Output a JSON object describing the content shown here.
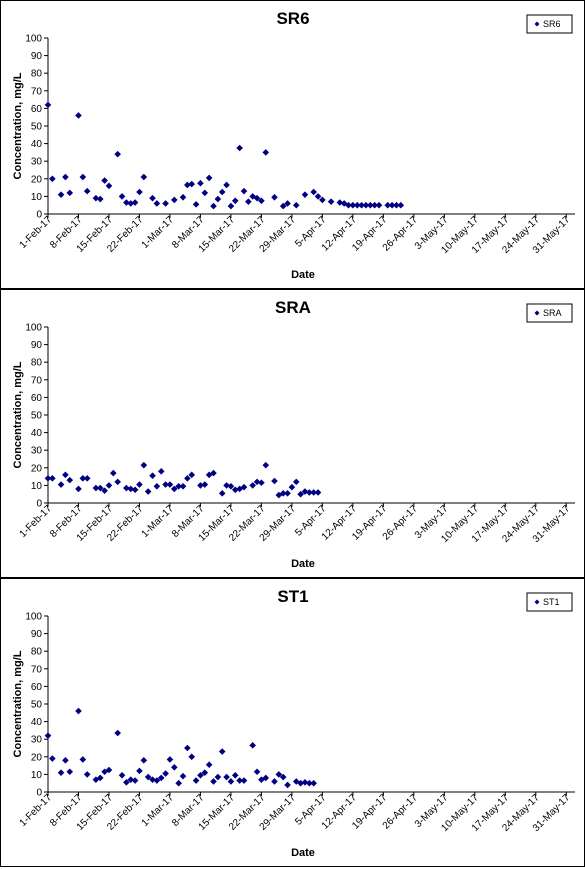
{
  "chart_data": [
    {
      "type": "scatter",
      "title": "SR6",
      "xlabel": "Date",
      "ylabel": "Concentration, mg/L",
      "ylim": [
        0,
        100
      ],
      "yticks": [
        0,
        10,
        20,
        30,
        40,
        50,
        60,
        70,
        80,
        90,
        100
      ],
      "xticks": [
        "1-Feb-17",
        "8-Feb-17",
        "15-Feb-17",
        "22-Feb-17",
        "1-Mar-17",
        "8-Mar-17",
        "15-Mar-17",
        "22-Mar-17",
        "29-Mar-17",
        "5-Apr-17",
        "12-Apr-17",
        "19-Apr-17",
        "26-Apr-17",
        "3-May-17",
        "10-May-17",
        "17-May-17",
        "24-May-17",
        "31-May-17"
      ],
      "xrange_days": [
        0,
        120
      ],
      "legend": "top-right",
      "series": [
        {
          "name": "SR6",
          "color": "#000080",
          "x": [
            0,
            1,
            3,
            4,
            5,
            7,
            8,
            9,
            11,
            12,
            13,
            14,
            16,
            17,
            18,
            19,
            20,
            21,
            22,
            24,
            25,
            27,
            29,
            31,
            32,
            33,
            34,
            35,
            36,
            37,
            38,
            39,
            40,
            41,
            42,
            43,
            44,
            45,
            46,
            47,
            48,
            49,
            50,
            52,
            54,
            55,
            57,
            59,
            61,
            62,
            63,
            65,
            67,
            68,
            69,
            70,
            71,
            72,
            73,
            74,
            75,
            76,
            78,
            79,
            80,
            81
          ],
          "y": [
            62,
            20,
            11,
            21,
            12,
            56,
            21,
            13,
            9,
            8.5,
            19,
            16,
            34,
            10,
            6.5,
            6,
            6.5,
            12.5,
            21,
            9,
            6,
            6,
            8,
            9.5,
            16.5,
            17,
            5.5,
            17.5,
            12,
            20.5,
            4.5,
            8.5,
            12.5,
            16.5,
            4.5,
            7.5,
            37.5,
            13,
            7,
            10,
            9,
            7.5,
            35,
            9.5,
            4.5,
            6,
            5,
            11,
            12.5,
            10,
            8,
            7,
            6.5,
            6,
            5,
            5,
            5,
            5,
            5,
            5,
            5,
            5,
            5,
            5,
            5,
            5
          ]
        }
      ]
    },
    {
      "type": "scatter",
      "title": "SRA",
      "xlabel": "Date",
      "ylabel": "Concentration, mg/L",
      "ylim": [
        0,
        100
      ],
      "yticks": [
        0,
        10,
        20,
        30,
        40,
        50,
        60,
        70,
        80,
        90,
        100
      ],
      "xticks": [
        "1-Feb-17",
        "8-Feb-17",
        "15-Feb-17",
        "22-Feb-17",
        "1-Mar-17",
        "8-Mar-17",
        "15-Mar-17",
        "22-Mar-17",
        "29-Mar-17",
        "5-Apr-17",
        "12-Apr-17",
        "19-Apr-17",
        "26-Apr-17",
        "3-May-17",
        "10-May-17",
        "17-May-17",
        "24-May-17",
        "31-May-17"
      ],
      "legend": "top-right",
      "series": [
        {
          "name": "SRA",
          "color": "#000080",
          "x": [
            0,
            1,
            3,
            4,
            5,
            7,
            8,
            9,
            11,
            12,
            13,
            14,
            15,
            16,
            18,
            19,
            20,
            21,
            22,
            23,
            24,
            25,
            26,
            27,
            28,
            29,
            30,
            31,
            32,
            33,
            35,
            36,
            37,
            38,
            40,
            41,
            42,
            43,
            44,
            45,
            47,
            48,
            49,
            50,
            52,
            53,
            54,
            55,
            56,
            57,
            58,
            59,
            60,
            61,
            62
          ],
          "y": [
            14,
            14,
            10.5,
            16,
            13,
            8,
            14,
            14,
            8.5,
            8.5,
            7,
            10,
            17,
            12,
            8.5,
            8,
            7.5,
            10.5,
            21.5,
            6.5,
            15.5,
            9.5,
            18,
            10.5,
            10.5,
            8,
            9.5,
            9.5,
            14,
            16,
            10,
            10.5,
            16,
            17,
            5.5,
            10,
            9.5,
            7.5,
            8,
            9,
            10,
            12,
            11.5,
            21.5,
            12.5,
            4.5,
            5.5,
            5.5,
            9,
            12,
            5,
            6.5,
            6,
            6,
            6
          ]
        }
      ]
    },
    {
      "type": "scatter",
      "title": "ST1",
      "xlabel": "Date",
      "ylabel": "Concentration, mg/L",
      "ylim": [
        0,
        100
      ],
      "yticks": [
        0,
        10,
        20,
        30,
        40,
        50,
        60,
        70,
        80,
        90,
        100
      ],
      "xticks": [
        "1-Feb-17",
        "8-Feb-17",
        "15-Feb-17",
        "22-Feb-17",
        "1-Mar-17",
        "8-Mar-17",
        "15-Mar-17",
        "22-Mar-17",
        "29-Mar-17",
        "5-Apr-17",
        "12-Apr-17",
        "19-Apr-17",
        "26-Apr-17",
        "3-May-17",
        "10-May-17",
        "17-May-17",
        "24-May-17",
        "31-May-17"
      ],
      "legend": "top-right",
      "series": [
        {
          "name": "ST1",
          "color": "#000080",
          "x": [
            0,
            1,
            3,
            4,
            5,
            7,
            8,
            9,
            11,
            12,
            13,
            14,
            16,
            17,
            18,
            19,
            20,
            21,
            22,
            23,
            24,
            25,
            26,
            27,
            28,
            29,
            30,
            31,
            32,
            33,
            34,
            35,
            36,
            37,
            38,
            39,
            40,
            41,
            42,
            43,
            44,
            45,
            47,
            48,
            49,
            50,
            52,
            53,
            54,
            55,
            57,
            58,
            59,
            60,
            61
          ],
          "y": [
            32,
            19,
            11,
            18,
            11.5,
            46,
            18.5,
            10,
            7,
            8,
            11.5,
            12.5,
            33.5,
            9.5,
            5.5,
            7,
            6.5,
            12,
            18,
            8.5,
            7,
            6.5,
            8,
            10.5,
            18.5,
            14,
            5,
            9,
            25,
            20,
            6.5,
            9.5,
            11,
            15.5,
            6,
            8.5,
            23,
            8.5,
            6,
            9.5,
            6.5,
            6.5,
            26.5,
            11.5,
            7,
            8,
            6,
            10,
            8.5,
            4,
            6,
            5,
            5.5,
            5,
            5
          ]
        }
      ]
    }
  ]
}
